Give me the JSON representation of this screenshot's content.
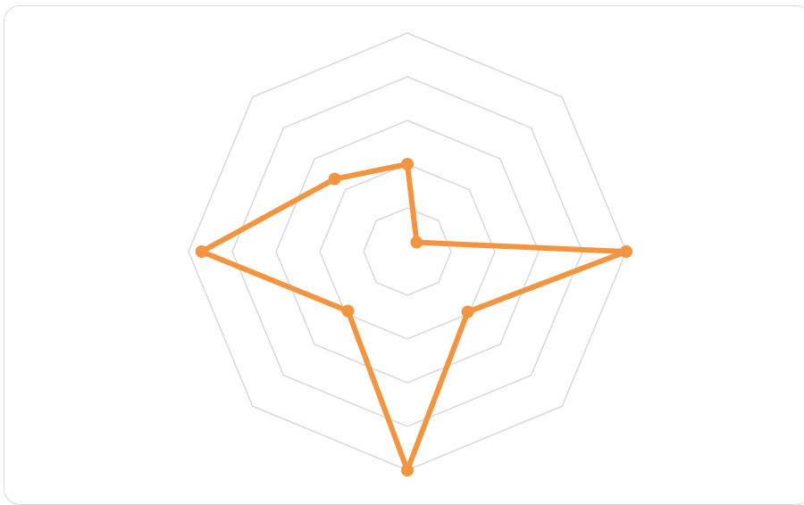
{
  "chart_data": {
    "type": "radar",
    "axes": 8,
    "rmax": 5,
    "grid_levels": [
      1,
      2,
      3,
      4,
      5
    ],
    "grid": true,
    "series": [
      {
        "values": [
          2.0,
          0.3,
          5.0,
          1.95,
          5.0,
          1.92,
          4.7,
          2.35
        ],
        "color": "#f39440"
      }
    ],
    "grid_color": "#d8d8d8",
    "card_border_color": "#dadada"
  }
}
